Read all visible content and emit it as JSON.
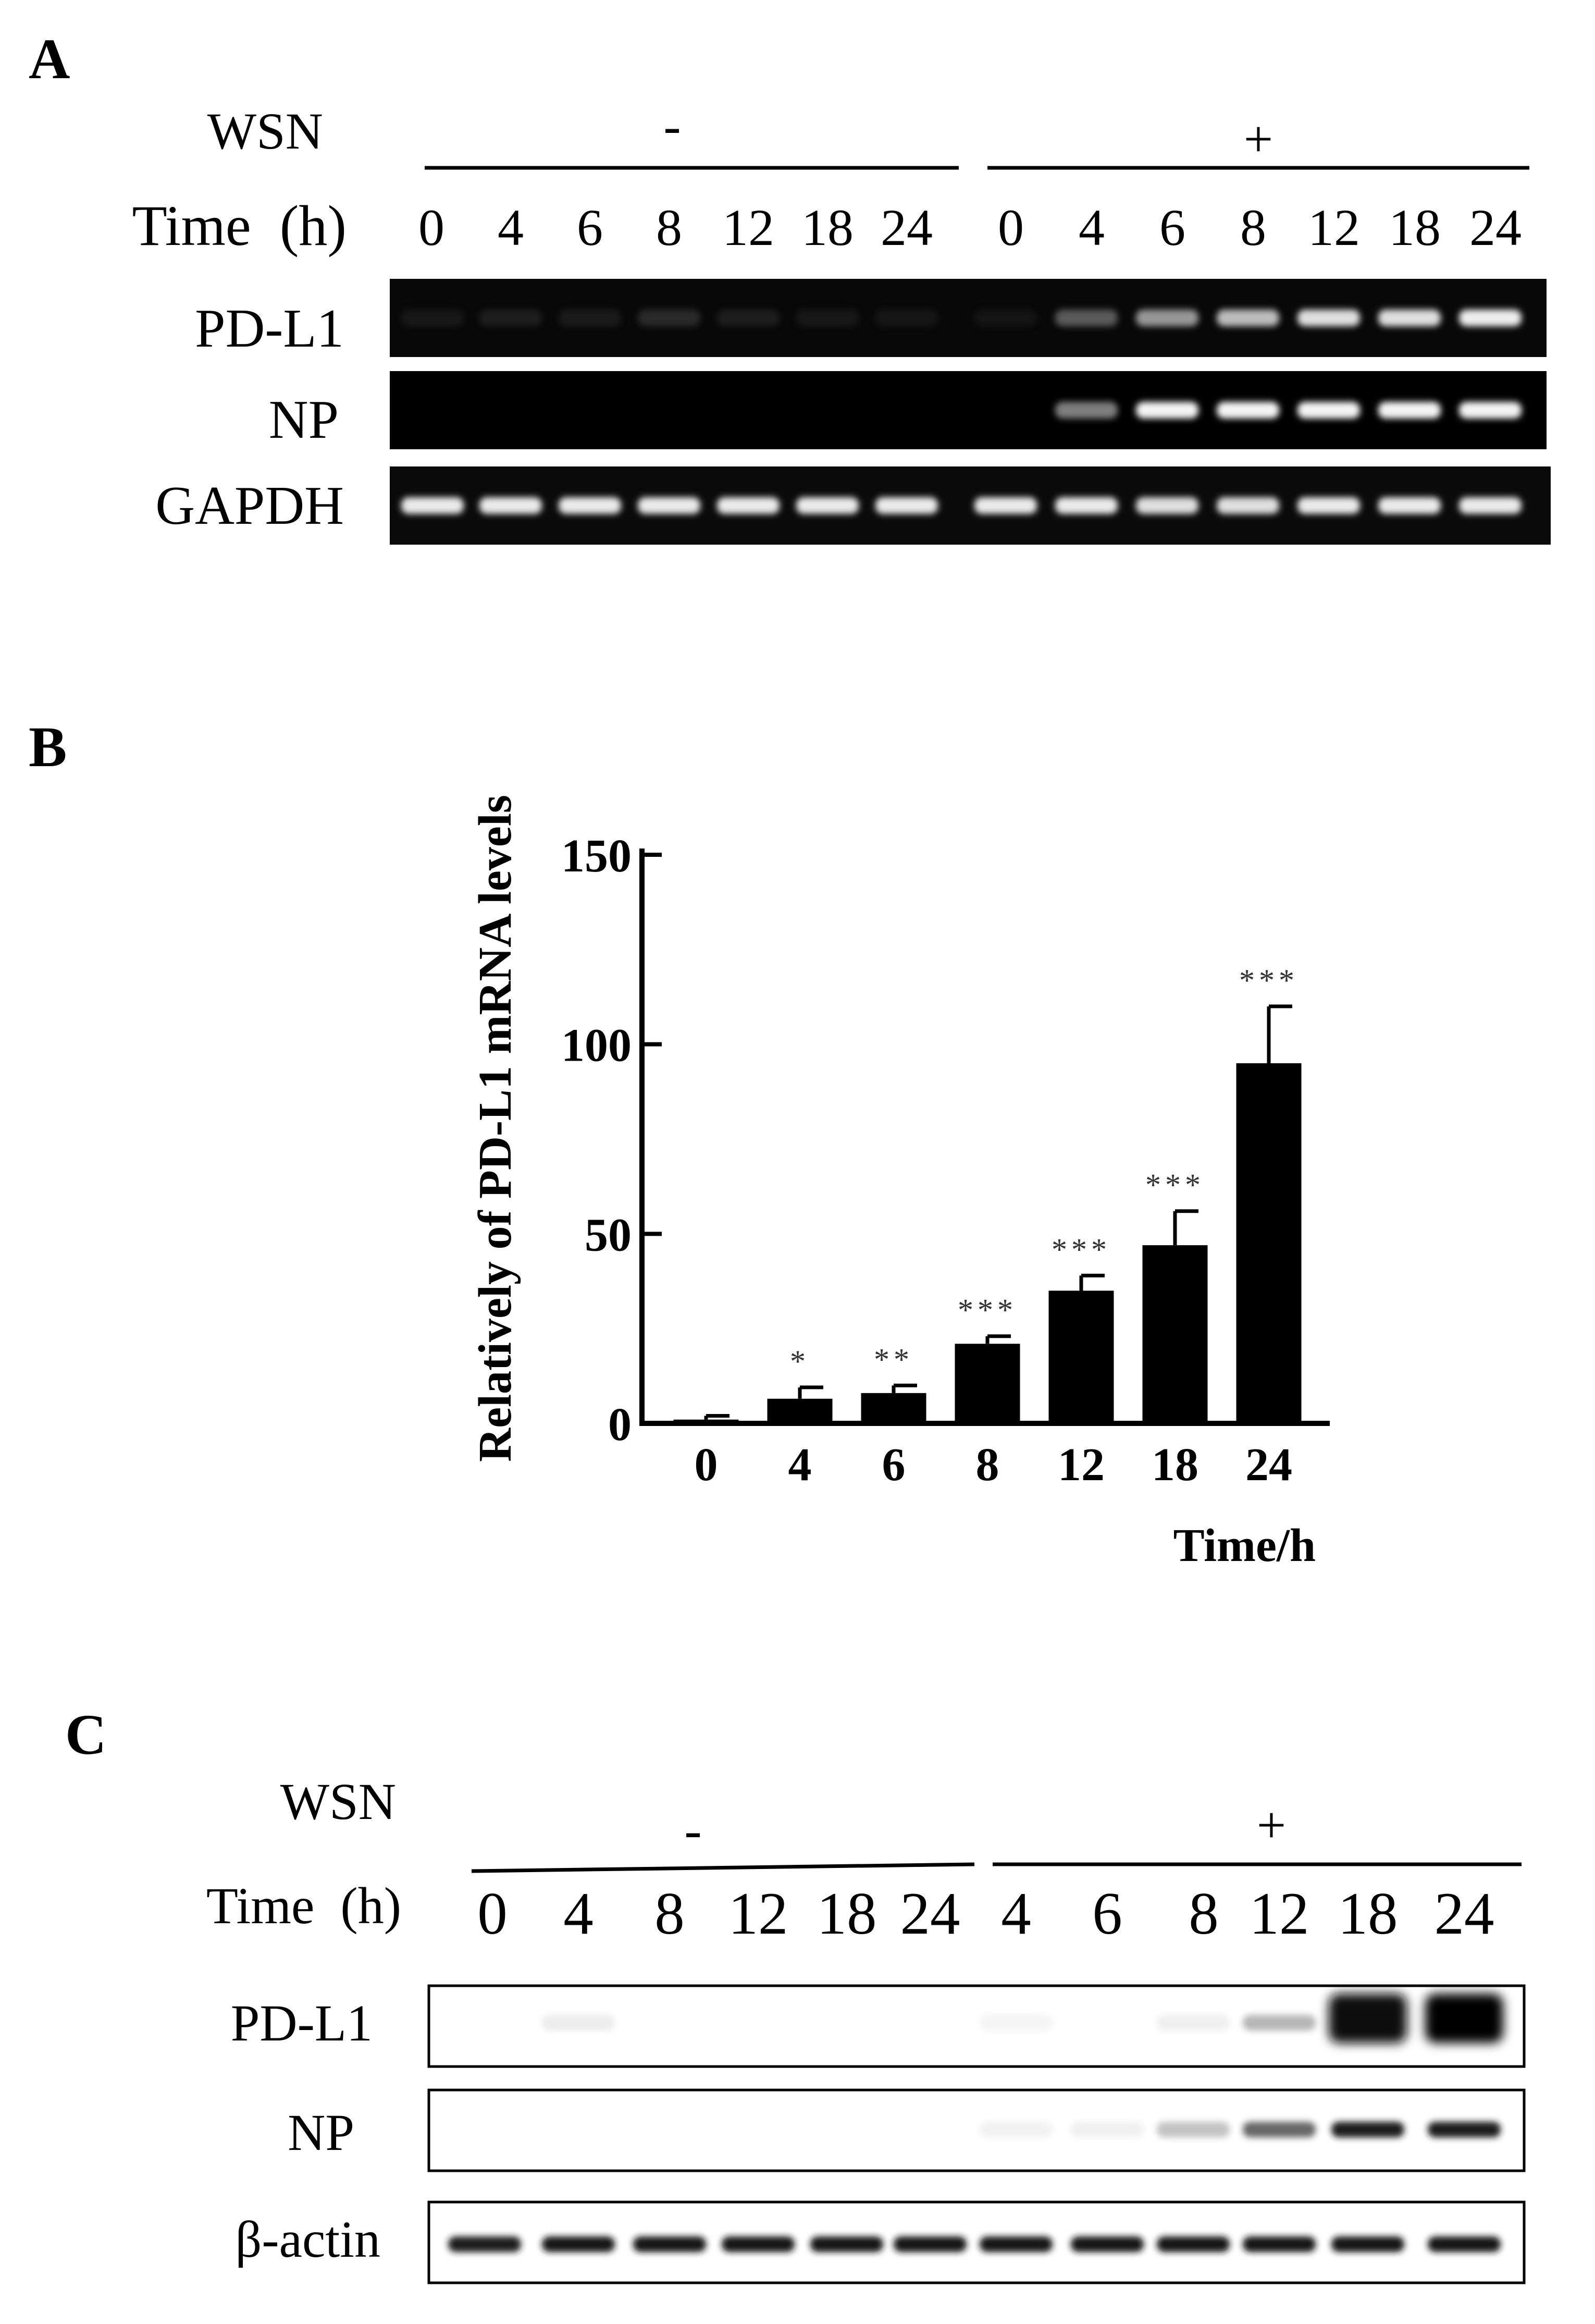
{
  "panelA": {
    "letter": "A",
    "treatment_label": "WSN",
    "time_label": "Time  (h)",
    "group_minus": "-",
    "group_plus": "+",
    "times_minus": [
      "0",
      "4",
      "6",
      "8",
      "12",
      "18",
      "24"
    ],
    "times_plus": [
      "0",
      "4",
      "6",
      "8",
      "12",
      "18",
      "24"
    ],
    "rows": [
      {
        "label": "PD-L1",
        "intensity": [
          0.08,
          0.12,
          0.1,
          0.2,
          0.12,
          0.08,
          0.06,
          0.04,
          0.42,
          0.62,
          0.72,
          0.85,
          0.85,
          0.92
        ]
      },
      {
        "label": "NP",
        "intensity": [
          0,
          0,
          0,
          0,
          0,
          0,
          0,
          0,
          0.55,
          0.95,
          0.95,
          0.95,
          0.95,
          0.95
        ]
      },
      {
        "label": "GAPDH",
        "intensity": [
          0.9,
          0.9,
          0.9,
          0.9,
          0.9,
          0.9,
          0.9,
          0.9,
          0.9,
          0.85,
          0.85,
          0.9,
          0.9,
          0.9
        ]
      }
    ]
  },
  "panelB": {
    "letter": "B",
    "chart_data": {
      "type": "bar",
      "categories": [
        "0",
        "4",
        "6",
        "8",
        "12",
        "18",
        "24"
      ],
      "values": [
        1,
        6.5,
        8,
        21,
        35,
        47,
        95
      ],
      "errors": [
        1,
        3,
        2,
        2,
        4,
        9,
        15
      ],
      "significance": [
        "",
        "*",
        "**",
        "***",
        "***",
        "***",
        "***"
      ],
      "ylabel": "Relatively of PD-L1 mRNA  levels",
      "xlabel": "Time/h",
      "yticks": [
        "0",
        "50",
        "100",
        "150"
      ],
      "ylim": [
        0,
        150
      ],
      "bar_color": "#000000",
      "grid": false,
      "legend": "none"
    }
  },
  "panelC": {
    "letter": "C",
    "treatment_label": "WSN",
    "time_label": "Time  (h)",
    "group_minus": "-",
    "group_plus": "+",
    "times_minus": [
      "0",
      "4",
      "8",
      "12",
      "18",
      "24"
    ],
    "times_plus": [
      "4",
      "6",
      "8",
      "12",
      "18",
      "24"
    ],
    "rows": [
      {
        "label": "PD-L1",
        "intensity": [
          0,
          0.08,
          0,
          0,
          0,
          0,
          0.02,
          0,
          0.06,
          0.35,
          0.95,
          1.0
        ]
      },
      {
        "label": "NP",
        "intensity": [
          0,
          0,
          0,
          0,
          0,
          0,
          0.04,
          0.05,
          0.3,
          0.6,
          0.9,
          0.9
        ]
      },
      {
        "label": "β-actin",
        "intensity": [
          0.9,
          0.92,
          0.92,
          0.92,
          0.92,
          0.92,
          0.92,
          0.92,
          0.92,
          0.92,
          0.92,
          0.92
        ]
      }
    ]
  }
}
